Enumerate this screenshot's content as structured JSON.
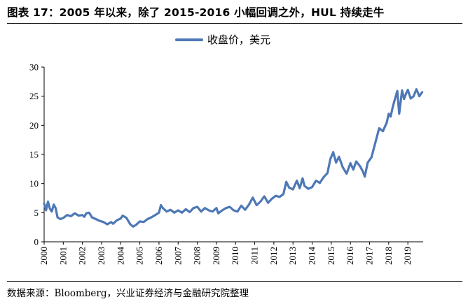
{
  "header": {
    "title": "图表 17：2005 年以来，除了 2015-2016 小幅回调之外，HUL 持续走牛"
  },
  "footer": {
    "source": "数据来源：Bloomberg，兴业证券经济与金融研究院整理"
  },
  "colors": {
    "series": "#4e78b5",
    "axis": "#000000"
  },
  "chart_data": {
    "type": "line",
    "title": "图表 17：2005 年以来，除了 2015-2016 小幅回调之外，HUL 持续走牛",
    "xlabel": "",
    "ylabel": "",
    "xlim": [
      2000,
      2019.8
    ],
    "ylim": [
      0,
      30
    ],
    "y_ticks": [
      0,
      5,
      10,
      15,
      20,
      25,
      30
    ],
    "x_tick_labels": [
      "2000",
      "2001",
      "2002",
      "2003",
      "2004",
      "2005",
      "2006",
      "2007",
      "2008",
      "2009",
      "2010",
      "2011",
      "2012",
      "2013",
      "2014",
      "2015",
      "2016",
      "2017",
      "2018",
      "2019"
    ],
    "grid": false,
    "legend_position": "top",
    "series": [
      {
        "name": "收盘价，美元",
        "x": [
          2000.0,
          2000.1,
          2000.2,
          2000.3,
          2000.4,
          2000.5,
          2000.6,
          2000.7,
          2000.85,
          2001.0,
          2001.2,
          2001.4,
          2001.6,
          2001.8,
          2002.0,
          2002.1,
          2002.2,
          2002.35,
          2002.5,
          2002.7,
          2002.9,
          2003.1,
          2003.3,
          2003.5,
          2003.6,
          2003.8,
          2004.0,
          2004.1,
          2004.3,
          2004.5,
          2004.65,
          2004.8,
          2005.0,
          2005.2,
          2005.4,
          2005.6,
          2005.8,
          2006.0,
          2006.1,
          2006.2,
          2006.4,
          2006.6,
          2006.8,
          2007.0,
          2007.2,
          2007.4,
          2007.6,
          2007.8,
          2008.0,
          2008.2,
          2008.4,
          2008.6,
          2008.8,
          2009.0,
          2009.1,
          2009.3,
          2009.5,
          2009.7,
          2009.9,
          2010.1,
          2010.3,
          2010.5,
          2010.7,
          2010.9,
          2011.1,
          2011.3,
          2011.5,
          2011.7,
          2011.9,
          2012.1,
          2012.3,
          2012.5,
          2012.65,
          2012.8,
          2013.0,
          2013.2,
          2013.35,
          2013.5,
          2013.6,
          2013.8,
          2014.0,
          2014.2,
          2014.4,
          2014.6,
          2014.8,
          2014.95,
          2015.1,
          2015.25,
          2015.4,
          2015.6,
          2015.8,
          2016.0,
          2016.15,
          2016.3,
          2016.5,
          2016.65,
          2016.75,
          2016.9,
          2017.1,
          2017.3,
          2017.5,
          2017.7,
          2017.9,
          2018.0,
          2018.1,
          2018.2,
          2018.3,
          2018.45,
          2018.55,
          2018.7,
          2018.8,
          2018.9,
          2019.0,
          2019.15,
          2019.3,
          2019.45,
          2019.6,
          2019.75
        ],
        "values": [
          6.6,
          5.4,
          6.9,
          5.7,
          5.2,
          6.4,
          5.8,
          4.2,
          3.9,
          4.1,
          4.6,
          4.4,
          4.9,
          4.5,
          4.6,
          4.3,
          4.9,
          5.0,
          4.2,
          3.9,
          3.6,
          3.4,
          3.0,
          3.4,
          3.1,
          3.7,
          4.0,
          4.5,
          4.1,
          3.0,
          2.6,
          2.9,
          3.5,
          3.4,
          3.9,
          4.2,
          4.6,
          5.0,
          6.3,
          5.8,
          5.2,
          5.5,
          5.0,
          5.4,
          5.0,
          5.6,
          5.1,
          5.8,
          6.0,
          5.2,
          5.8,
          5.4,
          5.2,
          5.8,
          4.9,
          5.4,
          5.8,
          6.0,
          5.4,
          5.2,
          6.2,
          5.5,
          6.4,
          7.6,
          6.3,
          6.9,
          7.8,
          6.7,
          7.4,
          7.9,
          7.7,
          8.2,
          10.3,
          9.3,
          9.0,
          10.5,
          9.2,
          10.9,
          9.6,
          9.1,
          9.4,
          10.5,
          10.1,
          11.1,
          11.8,
          14.2,
          15.4,
          13.6,
          14.6,
          12.8,
          11.7,
          13.5,
          12.4,
          13.8,
          13.0,
          12.1,
          11.2,
          13.6,
          14.5,
          17.0,
          19.5,
          19.0,
          20.5,
          22.0,
          21.5,
          23.0,
          24.2,
          25.9,
          22.0,
          26.0,
          24.5,
          25.4,
          26.1,
          24.6,
          25.0,
          26.2,
          25.0,
          25.7
        ]
      }
    ]
  }
}
